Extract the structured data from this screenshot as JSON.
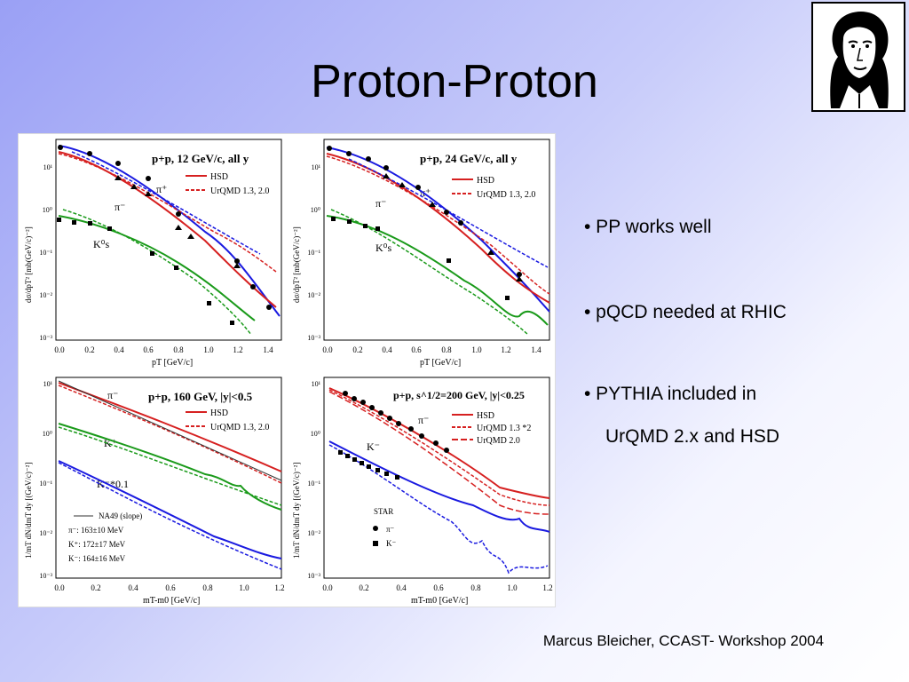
{
  "title": "Proton-Proton",
  "bullets": [
    "• PP works well",
    "• pQCD needed at RHIC",
    "• PYTHIA included in",
    "UrQMD 2.x and HSD"
  ],
  "footer": "Marcus Bleicher, CCAST- Workshop 2004",
  "portrait_icon": "goethe-portrait-icon",
  "colors": {
    "hsd": "#d62020",
    "urqmd": "#d62020",
    "blue": "#1a1ae0",
    "green": "#1a9a1a"
  },
  "panels": [
    {
      "title": "p+p, 12 GeV/c, all y",
      "legend": [
        "HSD",
        "UrQMD 1.3, 2.0"
      ],
      "xlabel": "pT [GeV/c]",
      "ylabel": "dσ/dpT² [mb(GeV/c)⁻²]",
      "xticks": [
        "0.0",
        "0.2",
        "0.4",
        "0.6",
        "0.8",
        "1.0",
        "1.2",
        "1.4"
      ],
      "yticks": [
        "10¹",
        "10⁰",
        "10⁻¹",
        "10⁻²",
        "10⁻³"
      ],
      "species": [
        "π⁺",
        "π⁻",
        "K⁰s"
      ]
    },
    {
      "title": "p+p, 24 GeV/c, all y",
      "legend": [
        "HSD",
        "UrQMD 1.3, 2.0"
      ],
      "xlabel": "pT [GeV/c]",
      "ylabel": "dσ/dpT² [mb(GeV/c)⁻²]",
      "xticks": [
        "0.0",
        "0.2",
        "0.4",
        "0.6",
        "0.8",
        "1.0",
        "1.2",
        "1.4"
      ],
      "yticks": [
        "10¹",
        "10⁰",
        "10⁻¹",
        "10⁻²",
        "10⁻³"
      ],
      "species": [
        "π⁺",
        "π⁻",
        "K⁰s"
      ]
    },
    {
      "title": "p+p, 160 GeV, |y|<0.5",
      "legend": [
        "HSD",
        "UrQMD 1.3, 2.0"
      ],
      "xlabel": "mT-m0 [GeV/c]",
      "ylabel": "1/mT dN/dmT dy [(GeV/c)⁻²]",
      "xticks": [
        "0.0",
        "0.2",
        "0.4",
        "0.6",
        "0.8",
        "1.0",
        "1.2"
      ],
      "yticks": [
        "10¹",
        "10⁰",
        "10⁻¹",
        "10⁻²",
        "10⁻³"
      ],
      "species": [
        "π⁻",
        "K⁺",
        "K⁻*0.1"
      ],
      "notes": [
        "NA49 (slope)",
        "π⁻: 163±10 MeV",
        "K⁺: 172±17 MeV",
        "K⁻: 164±16 MeV"
      ]
    },
    {
      "title": "p+p, s^1/2=200 GeV, |y|<0.25",
      "legend": [
        "HSD",
        "UrQMD 1.3 *2",
        "UrQMD 2.0"
      ],
      "xlabel": "mT-m0 [GeV/c]",
      "ylabel": "1/mT dN/dmT dy [(GeV/c)⁻²]",
      "xticks": [
        "0.0",
        "0.2",
        "0.4",
        "0.6",
        "0.8",
        "1.0",
        "1.2"
      ],
      "yticks": [
        "10¹",
        "10⁰",
        "10⁻¹",
        "10⁻²",
        "10⁻³"
      ],
      "species": [
        "π⁻",
        "K⁻"
      ],
      "notes": [
        "STAR",
        "π⁻",
        "K⁻"
      ]
    }
  ]
}
